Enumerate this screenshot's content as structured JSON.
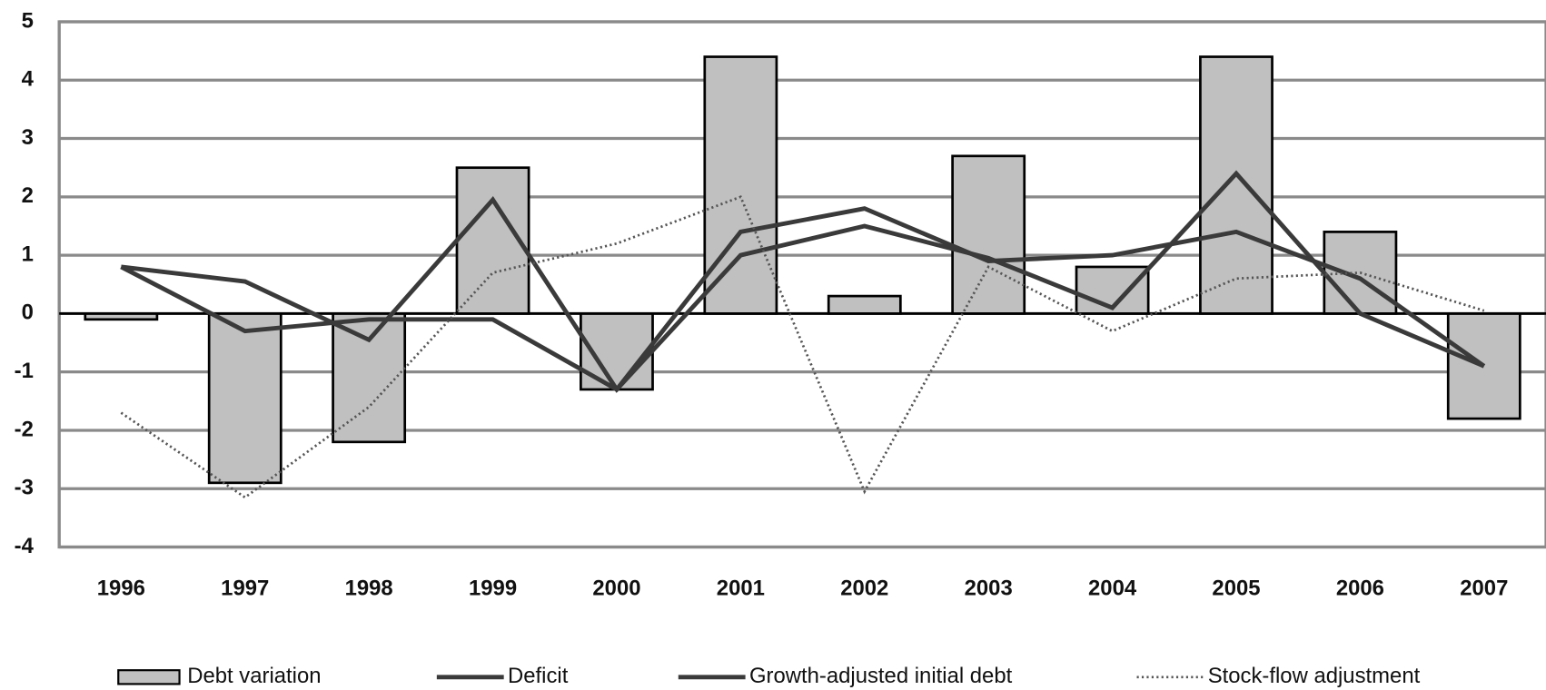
{
  "chart_data": {
    "type": "bar-line",
    "categories": [
      "1996",
      "1997",
      "1998",
      "1999",
      "2000",
      "2001",
      "2002",
      "2003",
      "2004",
      "2005",
      "2006",
      "2007"
    ],
    "series": [
      {
        "name": "Debt variation",
        "type": "bar",
        "color": "#c0c0c0",
        "values": [
          -0.1,
          -2.9,
          -2.2,
          2.5,
          -1.3,
          4.4,
          0.3,
          2.7,
          0.8,
          4.4,
          1.4,
          -1.8
        ]
      },
      {
        "name": "Deficit",
        "type": "line",
        "style": "solid",
        "color": "#3a3a3a",
        "values": [
          0.8,
          -0.3,
          -0.1,
          -0.1,
          -1.3,
          1.4,
          1.8,
          0.9,
          1.0,
          1.4,
          0.6,
          -0.9
        ]
      },
      {
        "name": "Growth-adjusted initial debt",
        "type": "line",
        "style": "solid",
        "color": "#3a3a3a",
        "values": [
          0.8,
          0.55,
          -0.45,
          1.95,
          -1.3,
          1.0,
          1.5,
          0.95,
          0.1,
          2.4,
          0.0,
          -0.9
        ]
      },
      {
        "name": "Stock-flow adjustment",
        "type": "line",
        "style": "dotted",
        "color": "#555555",
        "values": [
          -1.7,
          -3.15,
          -1.6,
          0.7,
          1.2,
          2.0,
          -3.05,
          0.8,
          -0.3,
          0.6,
          0.7,
          0.05
        ]
      }
    ],
    "ylim": [
      -4,
      5
    ],
    "yticks": [
      -4,
      -3,
      -2,
      -1,
      0,
      1,
      2,
      3,
      4,
      5
    ],
    "grid": true,
    "legend": "bottom"
  }
}
